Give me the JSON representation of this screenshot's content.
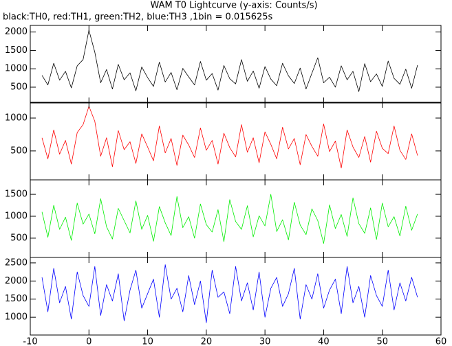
{
  "chart_data": {
    "type": "line",
    "title": "WAM T0 Lightcurve (y-axis: Counts/s)",
    "subtitle": "black:TH0, red:TH1, green:TH2, blue:TH3 ,1bin = 0.015625s",
    "x": [
      -8,
      -7,
      -6,
      -5,
      -4,
      -3,
      -2,
      -1,
      0,
      1,
      2,
      3,
      4,
      5,
      6,
      7,
      8,
      9,
      10,
      11,
      12,
      13,
      14,
      15,
      16,
      17,
      18,
      19,
      20,
      21,
      22,
      23,
      24,
      25,
      26,
      27,
      28,
      29,
      30,
      31,
      32,
      33,
      34,
      35,
      36,
      37,
      38,
      39,
      40,
      41,
      42,
      43,
      44,
      45,
      46,
      47,
      48,
      49,
      50,
      51,
      52,
      53,
      54,
      55,
      56
    ],
    "xlim": [
      -10,
      60
    ],
    "xticks": [
      -10,
      0,
      10,
      20,
      30,
      40,
      50,
      60
    ],
    "panels": [
      {
        "ylim": [
          70,
          2180
        ],
        "yticks": [
          500,
          1000,
          1500,
          2000
        ],
        "series": [
          {
            "color": "#000000",
            "values": [
              820,
              560,
              1150,
              690,
              930,
              480,
              1080,
              1250,
              2050,
              1450,
              620,
              980,
              450,
              1120,
              700,
              890,
              400,
              1050,
              760,
              520,
              1180,
              640,
              900,
              430,
              1010,
              780,
              560,
              1200,
              690,
              870,
              420,
              1090,
              730,
              590,
              1250,
              660,
              940,
              470,
              1060,
              720,
              540,
              1150,
              810,
              600,
              1020,
              450,
              880,
              1300,
              620,
              770,
              500,
              1080,
              700,
              930,
              380,
              1140,
              650,
              860,
              520,
              1210,
              740,
              580,
              990,
              470,
              1100
            ]
          }
        ]
      },
      {
        "ylim": [
          60,
          1240
        ],
        "yticks": [
          500,
          1000
        ],
        "series": [
          {
            "color": "#ff0000",
            "values": [
              700,
              380,
              820,
              450,
              660,
              300,
              780,
              900,
              1180,
              950,
              420,
              700,
              260,
              810,
              520,
              640,
              310,
              760,
              560,
              350,
              880,
              470,
              690,
              280,
              740,
              590,
              400,
              850,
              510,
              660,
              300,
              770,
              550,
              410,
              900,
              480,
              700,
              320,
              790,
              600,
              380,
              860,
              530,
              690,
              290,
              750,
              570,
              420,
              910,
              490,
              650,
              240,
              820,
              560,
              400,
              720,
              330,
              800,
              540,
              460,
              880,
              510,
              370,
              760,
              430
            ]
          }
        ]
      },
      {
        "ylim": [
          60,
          1830
        ],
        "yticks": [
          500,
          1000,
          1500
        ],
        "series": [
          {
            "color": "#00ee00",
            "values": [
              1100,
              520,
              1250,
              700,
              980,
              450,
              1300,
              820,
              1050,
              600,
              1400,
              760,
              480,
              1180,
              900,
              620,
              1350,
              700,
              1020,
              430,
              1220,
              850,
              560,
              1450,
              740,
              990,
              500,
              1280,
              810,
              640,
              1150,
              420,
              1380,
              880,
              700,
              1240,
              530,
              1010,
              780,
              1500,
              650,
              920,
              460,
              1320,
              800,
              580,
              1170,
              900,
              380,
              1260,
              720,
              1040,
              540,
              1420,
              830,
              610,
              1190,
              470,
              1300,
              760,
              990,
              550,
              1230,
              680,
              1050
            ]
          }
        ]
      },
      {
        "ylim": [
          510,
          2650
        ],
        "yticks": [
          1000,
          1500,
          2000,
          2500
        ],
        "series": [
          {
            "color": "#0000ff",
            "values": [
              2100,
              1150,
              2350,
              1400,
              1850,
              950,
              2250,
              1600,
              1300,
              2400,
              1050,
              1900,
              1450,
              2200,
              900,
              1750,
              2300,
              1250,
              1650,
              2050,
              1000,
              2450,
              1500,
              1800,
              1150,
              2150,
              1350,
              2000,
              850,
              2300,
              1550,
              1700,
              1100,
              2400,
              1450,
              1950,
              1200,
              2250,
              1000,
              1800,
              2100,
              1300,
              1650,
              2350,
              950,
              1900,
              1500,
              2200,
              1250,
              1750,
              2050,
              1100,
              2400,
              1400,
              1850,
              1000,
              2150,
              1600,
              1300,
              2300,
              1200,
              1950,
              1450,
              2100,
              1550
            ]
          }
        ]
      }
    ]
  }
}
